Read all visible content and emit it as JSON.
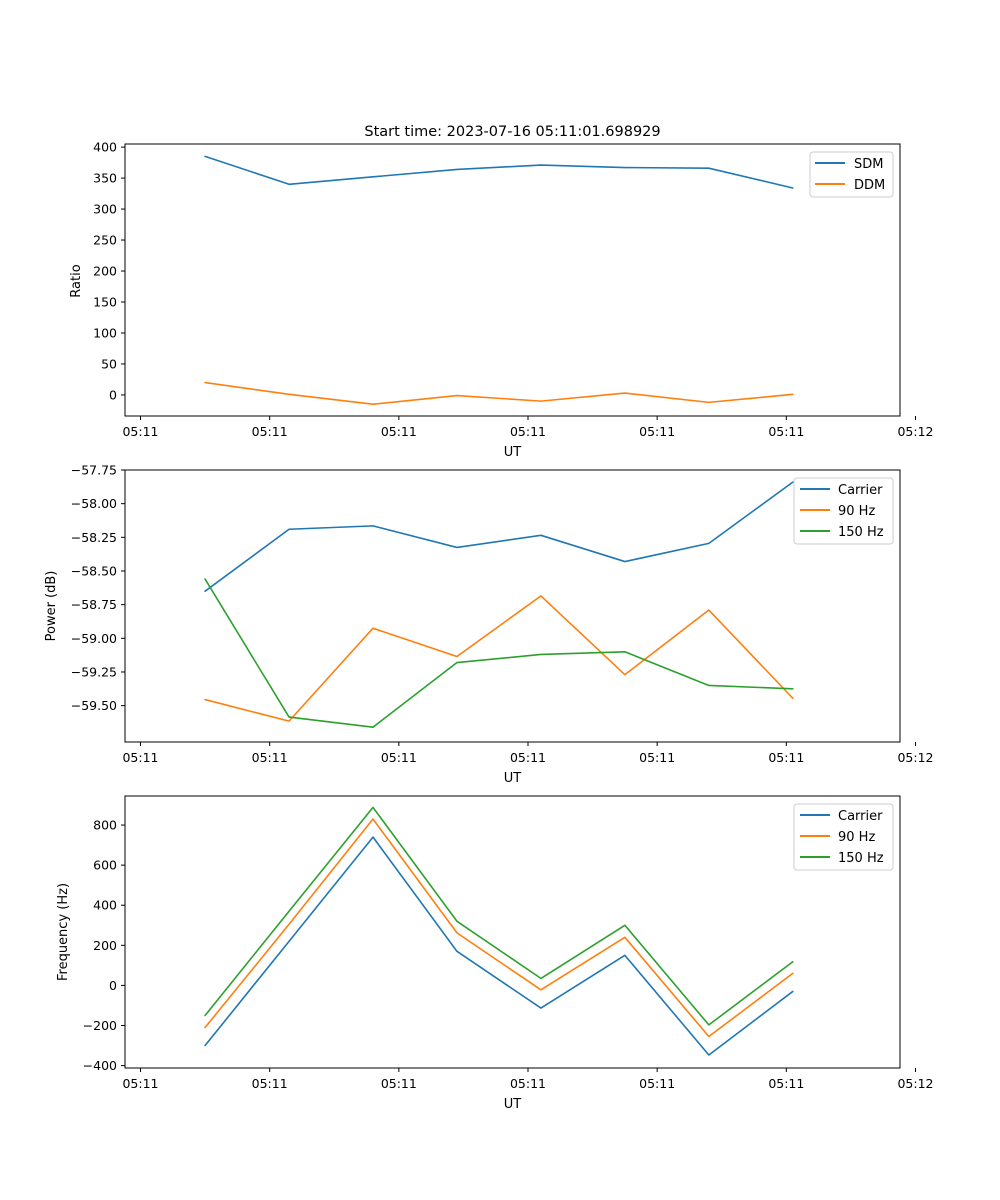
{
  "chart_data": [
    {
      "type": "line",
      "title": "Start time: 2023-07-16 05:11:01.698929",
      "xlabel": "UT",
      "ylabel": "Ratio",
      "x": [
        0.5,
        1.15,
        1.8,
        2.45,
        3.1,
        3.75,
        4.4,
        5.05
      ],
      "xlim": [
        -0.12,
        5.88
      ],
      "xticks": [
        0,
        1,
        2,
        3,
        4,
        5,
        6
      ],
      "xticklabels": [
        "05:11",
        "05:11",
        "05:11",
        "05:11",
        "05:11",
        "05:11",
        "05:12"
      ],
      "ylim": [
        -34,
        405
      ],
      "yticks": [
        0,
        50,
        100,
        150,
        200,
        250,
        300,
        350,
        400
      ],
      "yticklabels": [
        "0",
        "50",
        "100",
        "150",
        "200",
        "250",
        "300",
        "350",
        "400"
      ],
      "legend": "top-right",
      "series": [
        {
          "name": "SDM",
          "color": "#1f77b4",
          "values": [
            385,
            340,
            352,
            364,
            371,
            367,
            366,
            334
          ]
        },
        {
          "name": "DDM",
          "color": "#ff7f0e",
          "values": [
            20,
            1,
            -15,
            -1,
            -10,
            3,
            -12,
            1
          ]
        }
      ]
    },
    {
      "type": "line",
      "title": "",
      "xlabel": "UT",
      "ylabel": "Power (dB)",
      "x": [
        0.5,
        1.15,
        1.8,
        2.45,
        3.1,
        3.75,
        4.4,
        5.05
      ],
      "xlim": [
        -0.12,
        5.88
      ],
      "xticks": [
        0,
        1,
        2,
        3,
        4,
        5,
        6
      ],
      "xticklabels": [
        "05:11",
        "05:11",
        "05:11",
        "05:11",
        "05:11",
        "05:11",
        "05:12"
      ],
      "ylim": [
        -59.77,
        -57.75
      ],
      "yticks": [
        -59.5,
        -59.25,
        -59.0,
        -58.75,
        -58.5,
        -58.25,
        -58.0,
        -57.75
      ],
      "yticklabels": [
        "−59.50",
        "−59.25",
        "−59.00",
        "−58.75",
        "−58.50",
        "−58.25",
        "−58.00",
        "−57.75"
      ],
      "legend": "top-right",
      "series": [
        {
          "name": "Carrier",
          "color": "#1f77b4",
          "values": [
            -58.65,
            -58.19,
            -58.165,
            -58.325,
            -58.235,
            -58.43,
            -58.295,
            -57.84
          ]
        },
        {
          "name": "90 Hz",
          "color": "#ff7f0e",
          "values": [
            -59.455,
            -59.615,
            -58.925,
            -59.135,
            -58.685,
            -59.27,
            -58.79,
            -59.445
          ]
        },
        {
          "name": "150 Hz",
          "color": "#2ca02c",
          "values": [
            -58.56,
            -59.585,
            -59.66,
            -59.18,
            -59.12,
            -59.1,
            -59.35,
            -59.375
          ]
        }
      ]
    },
    {
      "type": "line",
      "title": "",
      "xlabel": "UT",
      "ylabel": "Frequency (Hz)",
      "x": [
        0.5,
        1.15,
        1.8,
        2.45,
        3.1,
        3.75,
        4.4,
        5.05
      ],
      "xlim": [
        -0.12,
        5.88
      ],
      "xticks": [
        0,
        1,
        2,
        3,
        4,
        5,
        6
      ],
      "xticklabels": [
        "05:11",
        "05:11",
        "05:11",
        "05:11",
        "05:11",
        "05:11",
        "05:12"
      ],
      "ylim": [
        -412,
        945
      ],
      "yticks": [
        -400,
        -200,
        0,
        200,
        400,
        600,
        800
      ],
      "yticklabels": [
        "−400",
        "−200",
        "0",
        "200",
        "400",
        "600",
        "800"
      ],
      "legend": "top-right",
      "series": [
        {
          "name": "Carrier",
          "color": "#1f77b4",
          "values": [
            -300,
            220,
            740,
            170,
            -113,
            150,
            -347,
            -30
          ]
        },
        {
          "name": "90 Hz",
          "color": "#ff7f0e",
          "values": [
            -210,
            305,
            830,
            262,
            -22,
            240,
            -255,
            60
          ]
        },
        {
          "name": "150 Hz",
          "color": "#2ca02c",
          "values": [
            -150,
            370,
            888,
            320,
            35,
            300,
            -197,
            118
          ]
        }
      ]
    }
  ]
}
